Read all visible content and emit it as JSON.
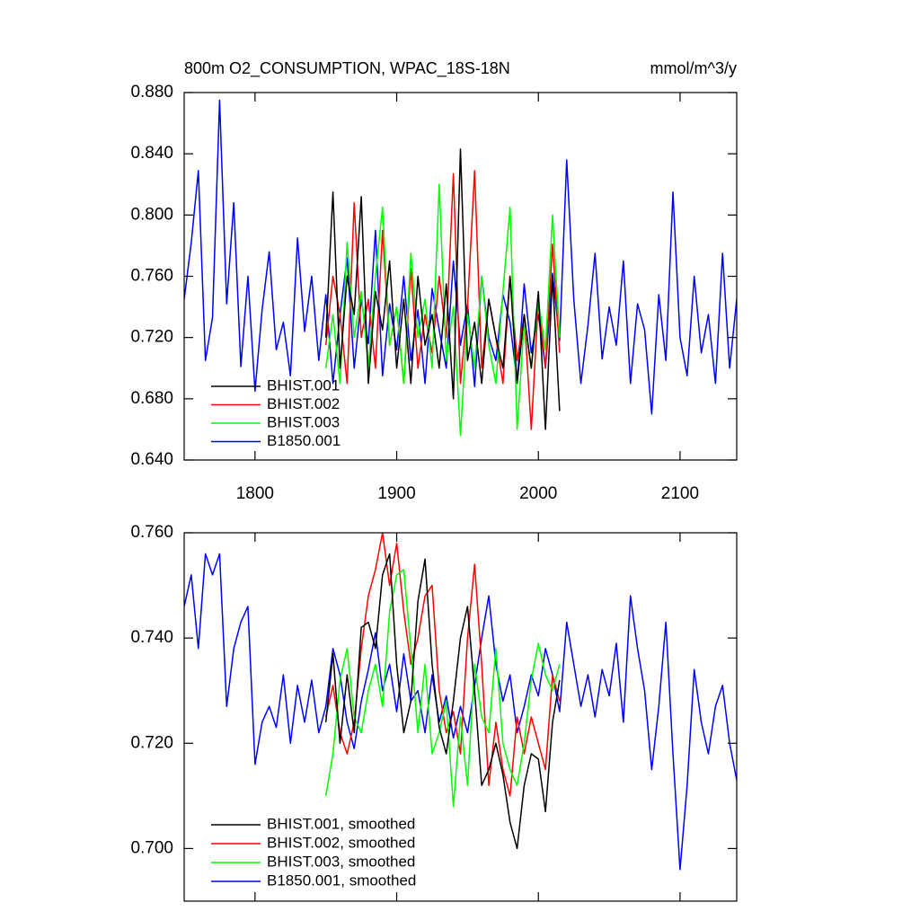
{
  "chart_data": [
    {
      "type": "line",
      "title": "800m O2_CONSUMPTION, WPAC_18S-18N",
      "units": "mmol/m^3/y",
      "xlim": [
        1750,
        2140
      ],
      "xticks": [
        1800,
        1900,
        2000,
        2100
      ],
      "ylim": [
        0.64,
        0.88
      ],
      "yticks": [
        {
          "value": 0.64,
          "label": "0.640"
        },
        {
          "value": 0.68,
          "label": "0.680"
        },
        {
          "value": 0.72,
          "label": "0.720"
        },
        {
          "value": 0.76,
          "label": "0.760"
        },
        {
          "value": 0.8,
          "label": "0.800"
        },
        {
          "value": 0.84,
          "label": "0.840"
        },
        {
          "value": 0.88,
          "label": "0.880"
        }
      ],
      "legend": "lower left",
      "series": [
        {
          "name": "B1850.001",
          "color": "#0000ff",
          "x": [
            1750,
            1755,
            1760,
            1765,
            1770,
            1775,
            1780,
            1785,
            1790,
            1795,
            1800,
            1805,
            1810,
            1815,
            1820,
            1825,
            1830,
            1835,
            1840,
            1845,
            1850,
            1855,
            1860,
            1865,
            1870,
            1875,
            1880,
            1885,
            1890,
            1895,
            1900,
            1905,
            1910,
            1915,
            1920,
            1925,
            1930,
            1935,
            1940,
            1945,
            1950,
            1955,
            1960,
            1965,
            1970,
            1975,
            1980,
            1985,
            1990,
            1995,
            2000,
            2005,
            2010,
            2015,
            2020,
            2025,
            2030,
            2035,
            2040,
            2045,
            2050,
            2055,
            2060,
            2065,
            2070,
            2075,
            2080,
            2085,
            2090,
            2095,
            2100,
            2105,
            2110,
            2115,
            2120,
            2125,
            2130,
            2135,
            2140
          ],
          "values": [
            0.745,
            0.782,
            0.829,
            0.705,
            0.733,
            0.875,
            0.742,
            0.808,
            0.701,
            0.76,
            0.685,
            0.738,
            0.776,
            0.712,
            0.73,
            0.695,
            0.785,
            0.724,
            0.76,
            0.705,
            0.748,
            0.69,
            0.735,
            0.772,
            0.7,
            0.745,
            0.716,
            0.79,
            0.695,
            0.742,
            0.712,
            0.76,
            0.705,
            0.738,
            0.69,
            0.752,
            0.725,
            0.7,
            0.77,
            0.715,
            0.742,
            0.688,
            0.76,
            0.72,
            0.705,
            0.748,
            0.73,
            0.69,
            0.755,
            0.71,
            0.735,
            0.7,
            0.762,
            0.718,
            0.836,
            0.745,
            0.69,
            0.728,
            0.775,
            0.706,
            0.74,
            0.715,
            0.77,
            0.69,
            0.742,
            0.725,
            0.67,
            0.748,
            0.705,
            0.815,
            0.72,
            0.695,
            0.76,
            0.71,
            0.735,
            0.69,
            0.775,
            0.7,
            0.745
          ]
        },
        {
          "name": "BHIST.001",
          "color": "#000000",
          "x": [
            1850,
            1855,
            1860,
            1865,
            1870,
            1875,
            1880,
            1885,
            1890,
            1895,
            1900,
            1905,
            1910,
            1915,
            1920,
            1925,
            1930,
            1935,
            1940,
            1945,
            1950,
            1955,
            1960,
            1965,
            1970,
            1975,
            1980,
            1985,
            1990,
            1995,
            2000,
            2005,
            2010,
            2015
          ],
          "values": [
            0.72,
            0.815,
            0.7,
            0.76,
            0.735,
            0.812,
            0.69,
            0.75,
            0.725,
            0.77,
            0.7,
            0.745,
            0.69,
            0.76,
            0.715,
            0.735,
            0.7,
            0.755,
            0.68,
            0.843,
            0.705,
            0.73,
            0.69,
            0.745,
            0.72,
            0.7,
            0.76,
            0.69,
            0.735,
            0.7,
            0.75,
            0.66,
            0.76,
            0.672
          ]
        },
        {
          "name": "BHIST.002",
          "color": "#ff0000",
          "x": [
            1850,
            1855,
            1860,
            1865,
            1870,
            1875,
            1880,
            1885,
            1890,
            1895,
            1900,
            1905,
            1910,
            1915,
            1920,
            1925,
            1930,
            1935,
            1940,
            1945,
            1950,
            1955,
            1960,
            1965,
            1970,
            1975,
            1980,
            1985,
            1990,
            1995,
            2000,
            2005,
            2010,
            2015
          ],
          "values": [
            0.715,
            0.76,
            0.735,
            0.69,
            0.808,
            0.72,
            0.745,
            0.7,
            0.79,
            0.715,
            0.74,
            0.69,
            0.765,
            0.7,
            0.735,
            0.71,
            0.76,
            0.72,
            0.827,
            0.69,
            0.74,
            0.829,
            0.7,
            0.745,
            0.72,
            0.69,
            0.76,
            0.705,
            0.735,
            0.66,
            0.745,
            0.7,
            0.781,
            0.71
          ]
        },
        {
          "name": "BHIST.003",
          "color": "#00ff00",
          "x": [
            1850,
            1855,
            1860,
            1865,
            1870,
            1875,
            1880,
            1885,
            1890,
            1895,
            1900,
            1905,
            1910,
            1915,
            1920,
            1925,
            1930,
            1935,
            1940,
            1945,
            1950,
            1955,
            1960,
            1965,
            1970,
            1975,
            1980,
            1985,
            1990,
            1995,
            2000,
            2005,
            2010,
            2015
          ],
          "values": [
            0.7,
            0.735,
            0.69,
            0.782,
            0.72,
            0.75,
            0.7,
            0.76,
            0.805,
            0.715,
            0.74,
            0.69,
            0.775,
            0.72,
            0.745,
            0.7,
            0.82,
            0.705,
            0.74,
            0.656,
            0.735,
            0.7,
            0.76,
            0.715,
            0.69,
            0.75,
            0.805,
            0.66,
            0.73,
            0.7,
            0.745,
            0.712,
            0.8,
            0.72
          ]
        }
      ],
      "legend_order": [
        1,
        2,
        3,
        0
      ]
    },
    {
      "type": "line",
      "ylim": [
        0.69,
        0.76
      ],
      "yticks": [
        {
          "value": 0.7,
          "label": "0.700"
        },
        {
          "value": 0.72,
          "label": "0.720"
        },
        {
          "value": 0.74,
          "label": "0.740"
        },
        {
          "value": 0.76,
          "label": "0.760"
        }
      ],
      "legend": "lower left",
      "series": [
        {
          "name": "B1850.001, smoothed",
          "color": "#0000ff",
          "x": [
            1750,
            1755,
            1760,
            1765,
            1770,
            1775,
            1780,
            1785,
            1790,
            1795,
            1800,
            1805,
            1810,
            1815,
            1820,
            1825,
            1830,
            1835,
            1840,
            1845,
            1850,
            1855,
            1860,
            1865,
            1870,
            1875,
            1880,
            1885,
            1890,
            1895,
            1900,
            1905,
            1910,
            1915,
            1920,
            1925,
            1930,
            1935,
            1940,
            1945,
            1950,
            1955,
            1960,
            1965,
            1970,
            1975,
            1980,
            1985,
            1990,
            1995,
            2000,
            2005,
            2010,
            2015,
            2020,
            2025,
            2030,
            2035,
            2040,
            2045,
            2050,
            2055,
            2060,
            2065,
            2070,
            2075,
            2080,
            2085,
            2090,
            2095,
            2100,
            2105,
            2110,
            2115,
            2120,
            2125,
            2130,
            2135,
            2140
          ],
          "values": [
            0.746,
            0.752,
            0.738,
            0.756,
            0.752,
            0.756,
            0.727,
            0.738,
            0.743,
            0.746,
            0.716,
            0.724,
            0.727,
            0.723,
            0.733,
            0.72,
            0.731,
            0.724,
            0.732,
            0.722,
            0.727,
            0.738,
            0.733,
            0.724,
            0.719,
            0.728,
            0.734,
            0.741,
            0.73,
            0.735,
            0.726,
            0.737,
            0.728,
            0.73,
            0.722,
            0.733,
            0.724,
            0.729,
            0.721,
            0.727,
            0.722,
            0.731,
            0.74,
            0.748,
            0.735,
            0.728,
            0.733,
            0.722,
            0.727,
            0.733,
            0.729,
            0.738,
            0.733,
            0.726,
            0.743,
            0.735,
            0.727,
            0.733,
            0.725,
            0.734,
            0.729,
            0.739,
            0.724,
            0.748,
            0.738,
            0.73,
            0.715,
            0.727,
            0.743,
            0.718,
            0.696,
            0.712,
            0.734,
            0.724,
            0.718,
            0.727,
            0.731,
            0.72,
            0.713
          ]
        },
        {
          "name": "BHIST.001, smoothed",
          "color": "#000000",
          "x": [
            1850,
            1855,
            1860,
            1865,
            1870,
            1875,
            1880,
            1885,
            1890,
            1895,
            1900,
            1905,
            1910,
            1915,
            1920,
            1925,
            1930,
            1935,
            1940,
            1945,
            1950,
            1955,
            1960,
            1965,
            1970,
            1975,
            1980,
            1985,
            1990,
            1995,
            2000,
            2005,
            2010,
            2015
          ],
          "values": [
            0.724,
            0.737,
            0.72,
            0.733,
            0.722,
            0.742,
            0.743,
            0.738,
            0.752,
            0.756,
            0.735,
            0.722,
            0.728,
            0.747,
            0.755,
            0.735,
            0.723,
            0.718,
            0.728,
            0.74,
            0.746,
            0.73,
            0.712,
            0.715,
            0.72,
            0.714,
            0.705,
            0.7,
            0.712,
            0.718,
            0.717,
            0.707,
            0.724,
            0.732
          ]
        },
        {
          "name": "BHIST.002, smoothed",
          "color": "#ff0000",
          "x": [
            1850,
            1855,
            1860,
            1865,
            1870,
            1875,
            1880,
            1885,
            1890,
            1895,
            1900,
            1905,
            1910,
            1915,
            1920,
            1925,
            1930,
            1935,
            1940,
            1945,
            1950,
            1955,
            1960,
            1965,
            1970,
            1975,
            1980,
            1985,
            1990,
            1995,
            2000,
            2005,
            2010,
            2015
          ],
          "values": [
            0.725,
            0.731,
            0.722,
            0.718,
            0.724,
            0.738,
            0.748,
            0.753,
            0.76,
            0.75,
            0.758,
            0.745,
            0.735,
            0.74,
            0.748,
            0.75,
            0.73,
            0.722,
            0.726,
            0.718,
            0.74,
            0.754,
            0.735,
            0.712,
            0.724,
            0.715,
            0.71,
            0.725,
            0.718,
            0.725,
            0.72,
            0.715,
            0.733,
            0.728
          ]
        },
        {
          "name": "BHIST.003, smoothed",
          "color": "#00ff00",
          "x": [
            1850,
            1855,
            1860,
            1865,
            1870,
            1875,
            1880,
            1885,
            1890,
            1895,
            1900,
            1905,
            1910,
            1915,
            1920,
            1925,
            1930,
            1935,
            1940,
            1945,
            1950,
            1955,
            1960,
            1965,
            1970,
            1975,
            1980,
            1985,
            1990,
            1995,
            2000,
            2005,
            2010,
            2015
          ],
          "values": [
            0.71,
            0.718,
            0.732,
            0.738,
            0.725,
            0.722,
            0.73,
            0.735,
            0.727,
            0.745,
            0.752,
            0.753,
            0.738,
            0.722,
            0.735,
            0.718,
            0.722,
            0.728,
            0.708,
            0.725,
            0.712,
            0.735,
            0.725,
            0.722,
            0.738,
            0.72,
            0.715,
            0.712,
            0.72,
            0.732,
            0.739,
            0.733,
            0.73,
            0.735
          ]
        }
      ],
      "legend_order": [
        1,
        2,
        3,
        0
      ]
    }
  ]
}
